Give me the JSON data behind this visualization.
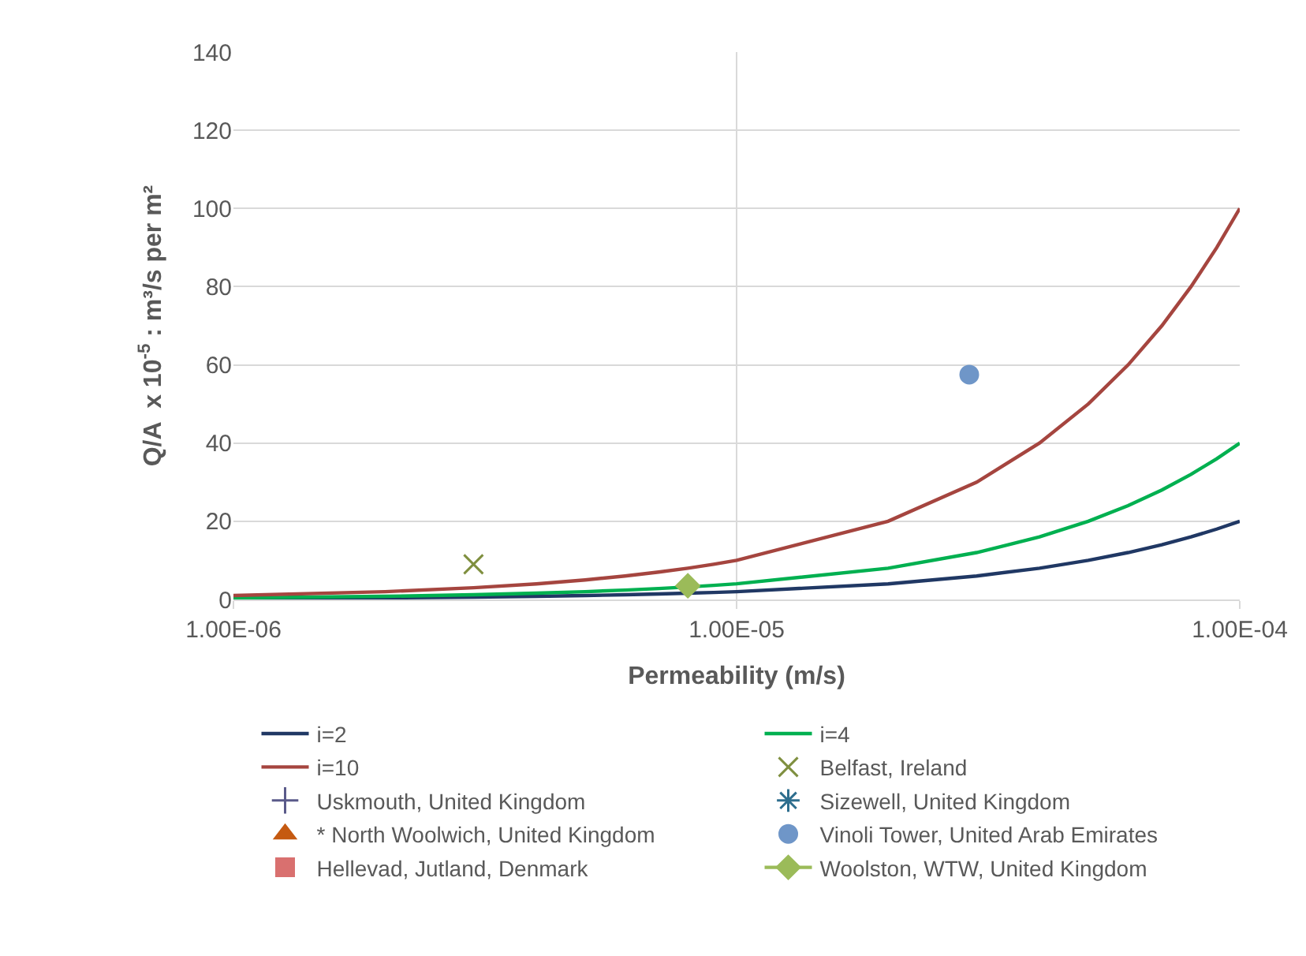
{
  "chart_data": {
    "type": "line",
    "xlabel": "Permeability (m/s)",
    "ylabel": "Q/A  x 10$^{-5}$ : m³/s per m²",
    "log": "x",
    "xlim": [
      1e-06,
      0.0001
    ],
    "xticks": [
      {
        "value": 1e-06,
        "label": "1.00E-06"
      },
      {
        "value": 1e-05,
        "label": "1.00E-05"
      },
      {
        "value": 0.0001,
        "label": "1.00E-04"
      }
    ],
    "ylim": [
      0,
      140
    ],
    "yticks": [
      0,
      20,
      40,
      60,
      80,
      100,
      120,
      140
    ],
    "grid": true,
    "legend": "bottom",
    "series": [
      {
        "name": "i=2",
        "color": "#203864",
        "x": [
          1e-06,
          2e-06,
          3e-06,
          4e-06,
          5e-06,
          6e-06,
          7e-06,
          8e-06,
          9e-06,
          1e-05,
          2e-05,
          3e-05,
          4e-05,
          5e-05,
          6e-05,
          7e-05,
          8e-05,
          9e-05,
          0.0001
        ],
        "values": [
          0.2,
          0.4,
          0.6,
          0.8,
          1,
          1.2,
          1.4,
          1.6,
          1.8,
          2,
          4,
          6,
          8,
          10,
          12,
          14,
          16,
          18,
          20
        ]
      },
      {
        "name": "i=4",
        "color": "#00b050",
        "x": [
          1e-06,
          2e-06,
          3e-06,
          4e-06,
          5e-06,
          6e-06,
          7e-06,
          8e-06,
          9e-06,
          1e-05,
          2e-05,
          3e-05,
          4e-05,
          5e-05,
          6e-05,
          7e-05,
          8e-05,
          9e-05,
          0.0001
        ],
        "values": [
          0.4,
          0.8,
          1.2,
          1.6,
          2,
          2.4,
          2.8,
          3.2,
          3.6,
          4,
          8,
          12,
          16,
          20,
          24,
          28,
          32,
          36,
          40
        ]
      },
      {
        "name": "i=10",
        "color": "#a5453f",
        "x": [
          1e-06,
          2e-06,
          3e-06,
          4e-06,
          5e-06,
          6e-06,
          7e-06,
          8e-06,
          9e-06,
          1e-05,
          2e-05,
          3e-05,
          4e-05,
          5e-05,
          6e-05,
          7e-05,
          8e-05,
          9e-05,
          0.0001
        ],
        "values": [
          1,
          2,
          3,
          4,
          5,
          6,
          7,
          8,
          9,
          10,
          20,
          30,
          40,
          50,
          60,
          70,
          80,
          90,
          100
        ]
      },
      {
        "name": "Belfast, Ireland",
        "type": "scatter",
        "marker": "cross",
        "color": "#7f8f3f",
        "x": [
          3e-06
        ],
        "values": [
          9
        ]
      },
      {
        "name": "Uskmouth, United Kingdom",
        "type": "scatter",
        "marker": "plus",
        "color": "#5a5a8a"
      },
      {
        "name": "Sizewell, United Kingdom",
        "type": "scatter",
        "marker": "asterisk",
        "color": "#2e6e8e"
      },
      {
        "name": "* North Woolwich, United Kingdom",
        "type": "scatter",
        "marker": "triangle",
        "color": "#c55a11"
      },
      {
        "name": "Vinoli Tower, United Arab Emirates",
        "type": "scatter",
        "marker": "circle",
        "color": "#6f96c8",
        "x": [
          2.9e-05
        ],
        "values": [
          57.5
        ]
      },
      {
        "name": "Hellevad, Jutland, Denmark",
        "type": "scatter",
        "marker": "square",
        "color": "#d9706f"
      },
      {
        "name": "Woolston, WTW, United Kingdom",
        "type": "line",
        "marker": "diamond",
        "color": "#9bbb59",
        "x": [
          8e-06
        ],
        "values": [
          3.5
        ]
      }
    ]
  }
}
